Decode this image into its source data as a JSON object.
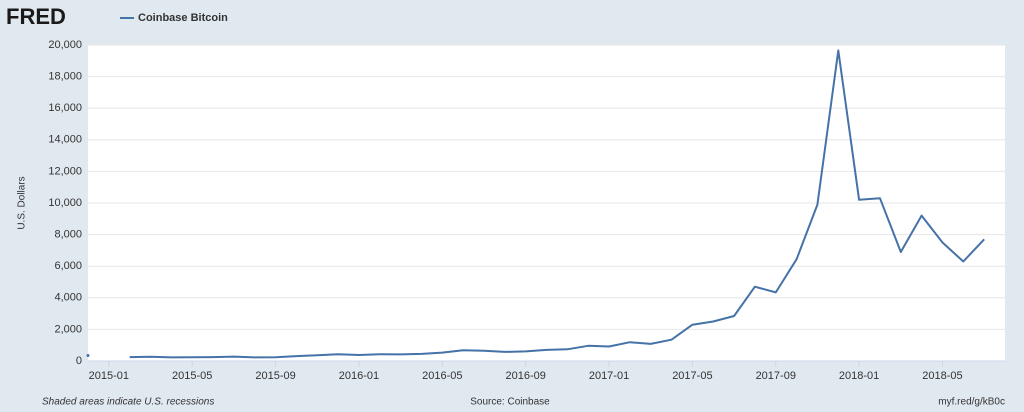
{
  "chart_data": {
    "type": "line",
    "brand": "FRED",
    "y_label": "U.S. Dollars",
    "note": "Shaded areas indicate U.S. recessions",
    "source": "Source: Coinbase",
    "url": "myf.red/g/kB0c",
    "x": [
      "2014-12",
      "2015-01",
      "2015-02",
      "2015-03",
      "2015-04",
      "2015-05",
      "2015-06",
      "2015-07",
      "2015-08",
      "2015-09",
      "2015-10",
      "2015-11",
      "2015-12",
      "2016-01",
      "2016-02",
      "2016-03",
      "2016-04",
      "2016-05",
      "2016-06",
      "2016-07",
      "2016-08",
      "2016-09",
      "2016-10",
      "2016-11",
      "2016-12",
      "2017-01",
      "2017-02",
      "2017-03",
      "2017-04",
      "2017-05",
      "2017-06",
      "2017-07",
      "2017-08",
      "2017-09",
      "2017-10",
      "2017-11",
      "2017-12",
      "2018-01",
      "2018-02",
      "2018-03",
      "2018-04",
      "2018-05",
      "2018-06",
      "2018-07"
    ],
    "series": [
      {
        "name": "Coinbase Bitcoin",
        "color": "#4572a7",
        "values": [
          350,
          null,
          250,
          270,
          230,
          240,
          250,
          280,
          230,
          235,
          310,
          360,
          430,
          380,
          430,
          415,
          450,
          530,
          680,
          650,
          575,
          610,
          700,
          740,
          960,
          920,
          1190,
          1080,
          1350,
          2300,
          2500,
          2850,
          4700,
          4340,
          6440,
          9900,
          19650,
          10200,
          10300,
          6900,
          9200,
          7500,
          6300,
          7700
        ]
      }
    ],
    "xlim": [
      "2014-12",
      "2018-08"
    ],
    "xticks": [
      "2015-01",
      "2015-05",
      "2015-09",
      "2016-01",
      "2016-05",
      "2016-09",
      "2017-01",
      "2017-05",
      "2017-09",
      "2018-01",
      "2018-05"
    ],
    "ylim": [
      0,
      20000
    ],
    "yticks": [
      0,
      {
        "value": 2000,
        "label": "2,000"
      },
      {
        "value": 4000,
        "label": "4,000"
      },
      {
        "value": 6000,
        "label": "6,000"
      },
      {
        "value": 8000,
        "label": "8,000"
      },
      {
        "value": 10000,
        "label": "10,000"
      },
      {
        "value": 12000,
        "label": "12,000"
      },
      {
        "value": 14000,
        "label": "14,000"
      },
      {
        "value": 16000,
        "label": "16,000"
      },
      {
        "value": 18000,
        "label": "18,000"
      },
      {
        "value": 20000,
        "label": "20,000"
      }
    ],
    "grid": true
  }
}
